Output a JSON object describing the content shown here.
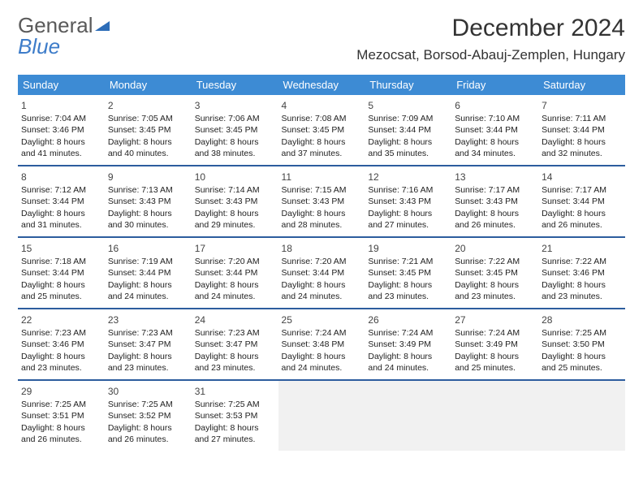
{
  "logo": {
    "word1": "General",
    "word2": "Blue",
    "triangle_color": "#2d6db8"
  },
  "header": {
    "title": "December 2024",
    "location": "Mezocsat, Borsod-Abauj-Zemplen, Hungary"
  },
  "styles": {
    "header_row_bg": "#3d8bd4",
    "header_row_fg": "#ffffff",
    "row_divider": "#2d5d9e",
    "empty_bg": "#f1f1f1",
    "body_font_size": 10.5,
    "daynum_color": "#444444"
  },
  "calendar": {
    "type": "table",
    "columns": [
      "Sunday",
      "Monday",
      "Tuesday",
      "Wednesday",
      "Thursday",
      "Friday",
      "Saturday"
    ],
    "weeks": [
      [
        {
          "n": "1",
          "sr": "7:04 AM",
          "ss": "3:46 PM",
          "dl": "8 hours and 41 minutes."
        },
        {
          "n": "2",
          "sr": "7:05 AM",
          "ss": "3:45 PM",
          "dl": "8 hours and 40 minutes."
        },
        {
          "n": "3",
          "sr": "7:06 AM",
          "ss": "3:45 PM",
          "dl": "8 hours and 38 minutes."
        },
        {
          "n": "4",
          "sr": "7:08 AM",
          "ss": "3:45 PM",
          "dl": "8 hours and 37 minutes."
        },
        {
          "n": "5",
          "sr": "7:09 AM",
          "ss": "3:44 PM",
          "dl": "8 hours and 35 minutes."
        },
        {
          "n": "6",
          "sr": "7:10 AM",
          "ss": "3:44 PM",
          "dl": "8 hours and 34 minutes."
        },
        {
          "n": "7",
          "sr": "7:11 AM",
          "ss": "3:44 PM",
          "dl": "8 hours and 32 minutes."
        }
      ],
      [
        {
          "n": "8",
          "sr": "7:12 AM",
          "ss": "3:44 PM",
          "dl": "8 hours and 31 minutes."
        },
        {
          "n": "9",
          "sr": "7:13 AM",
          "ss": "3:43 PM",
          "dl": "8 hours and 30 minutes."
        },
        {
          "n": "10",
          "sr": "7:14 AM",
          "ss": "3:43 PM",
          "dl": "8 hours and 29 minutes."
        },
        {
          "n": "11",
          "sr": "7:15 AM",
          "ss": "3:43 PM",
          "dl": "8 hours and 28 minutes."
        },
        {
          "n": "12",
          "sr": "7:16 AM",
          "ss": "3:43 PM",
          "dl": "8 hours and 27 minutes."
        },
        {
          "n": "13",
          "sr": "7:17 AM",
          "ss": "3:43 PM",
          "dl": "8 hours and 26 minutes."
        },
        {
          "n": "14",
          "sr": "7:17 AM",
          "ss": "3:44 PM",
          "dl": "8 hours and 26 minutes."
        }
      ],
      [
        {
          "n": "15",
          "sr": "7:18 AM",
          "ss": "3:44 PM",
          "dl": "8 hours and 25 minutes."
        },
        {
          "n": "16",
          "sr": "7:19 AM",
          "ss": "3:44 PM",
          "dl": "8 hours and 24 minutes."
        },
        {
          "n": "17",
          "sr": "7:20 AM",
          "ss": "3:44 PM",
          "dl": "8 hours and 24 minutes."
        },
        {
          "n": "18",
          "sr": "7:20 AM",
          "ss": "3:44 PM",
          "dl": "8 hours and 24 minutes."
        },
        {
          "n": "19",
          "sr": "7:21 AM",
          "ss": "3:45 PM",
          "dl": "8 hours and 23 minutes."
        },
        {
          "n": "20",
          "sr": "7:22 AM",
          "ss": "3:45 PM",
          "dl": "8 hours and 23 minutes."
        },
        {
          "n": "21",
          "sr": "7:22 AM",
          "ss": "3:46 PM",
          "dl": "8 hours and 23 minutes."
        }
      ],
      [
        {
          "n": "22",
          "sr": "7:23 AM",
          "ss": "3:46 PM",
          "dl": "8 hours and 23 minutes."
        },
        {
          "n": "23",
          "sr": "7:23 AM",
          "ss": "3:47 PM",
          "dl": "8 hours and 23 minutes."
        },
        {
          "n": "24",
          "sr": "7:23 AM",
          "ss": "3:47 PM",
          "dl": "8 hours and 23 minutes."
        },
        {
          "n": "25",
          "sr": "7:24 AM",
          "ss": "3:48 PM",
          "dl": "8 hours and 24 minutes."
        },
        {
          "n": "26",
          "sr": "7:24 AM",
          "ss": "3:49 PM",
          "dl": "8 hours and 24 minutes."
        },
        {
          "n": "27",
          "sr": "7:24 AM",
          "ss": "3:49 PM",
          "dl": "8 hours and 25 minutes."
        },
        {
          "n": "28",
          "sr": "7:25 AM",
          "ss": "3:50 PM",
          "dl": "8 hours and 25 minutes."
        }
      ],
      [
        {
          "n": "29",
          "sr": "7:25 AM",
          "ss": "3:51 PM",
          "dl": "8 hours and 26 minutes."
        },
        {
          "n": "30",
          "sr": "7:25 AM",
          "ss": "3:52 PM",
          "dl": "8 hours and 26 minutes."
        },
        {
          "n": "31",
          "sr": "7:25 AM",
          "ss": "3:53 PM",
          "dl": "8 hours and 27 minutes."
        },
        null,
        null,
        null,
        null
      ]
    ],
    "labels": {
      "sunrise": "Sunrise:",
      "sunset": "Sunset:",
      "daylight": "Daylight:"
    }
  }
}
